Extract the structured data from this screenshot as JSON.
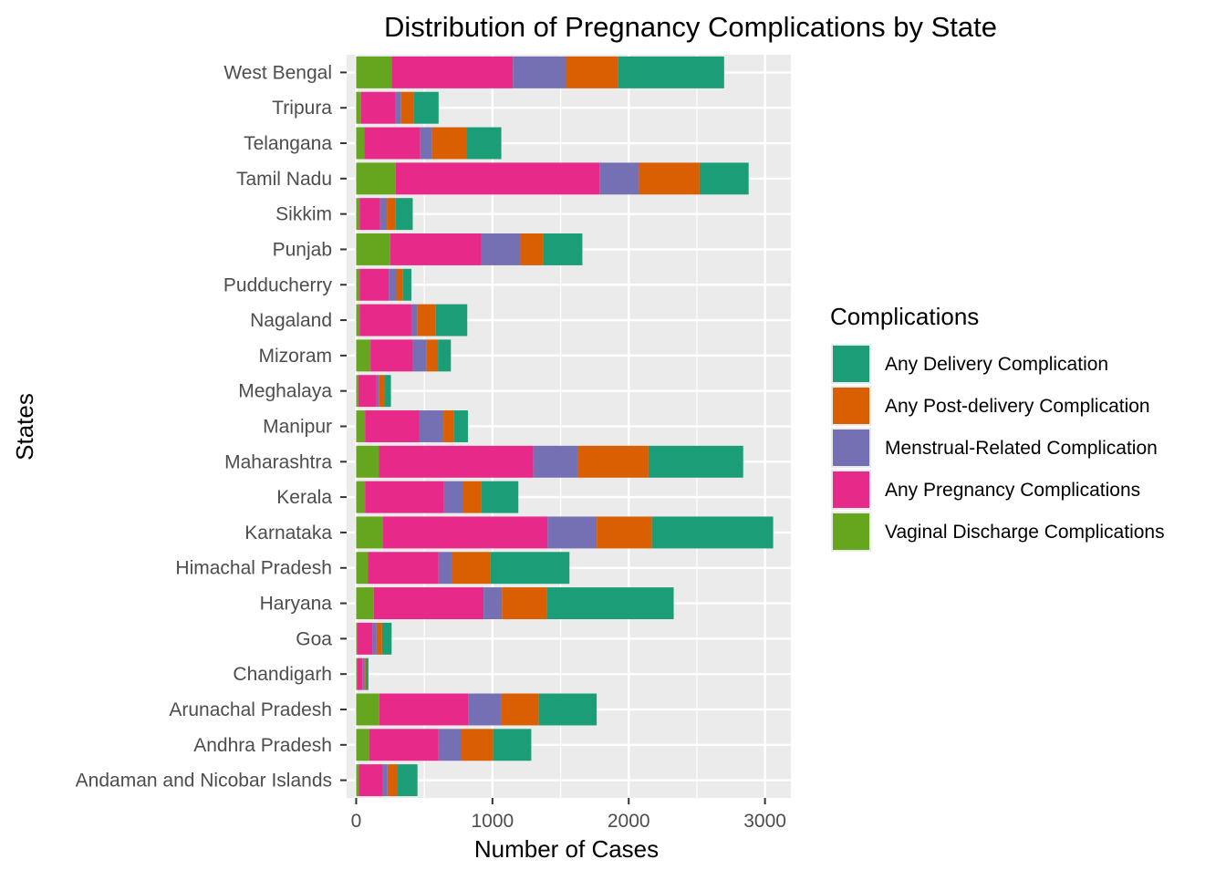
{
  "chart_data": {
    "type": "bar",
    "orientation": "horizontal",
    "stacked": true,
    "title": "Distribution of Pregnancy Complications by State",
    "xlabel": "Number of Cases",
    "ylabel": "States",
    "xlim": [
      -70,
      3190
    ],
    "xticks": [
      0,
      1000,
      2000,
      3000
    ],
    "grid": true,
    "legend_title": "Complications",
    "legend_position": "right",
    "categories": [
      "West Bengal",
      "Tripura",
      "Telangana",
      "Tamil Nadu",
      "Sikkim",
      "Punjab",
      "Pudducherry",
      "Nagaland",
      "Mizoram",
      "Meghalaya",
      "Manipur",
      "Maharashtra",
      "Kerala",
      "Karnataka",
      "Himachal Pradesh",
      "Haryana",
      "Goa",
      "Chandigarh",
      "Arunachal Pradesh",
      "Andhra Pradesh",
      "Andaman and Nicobar Islands"
    ],
    "series": [
      {
        "name": "Vaginal Discharge Complications",
        "color": "#66A61E",
        "values": [
          260,
          35,
          60,
          290,
          25,
          250,
          25,
          25,
          105,
          15,
          65,
          165,
          65,
          195,
          85,
          130,
          5,
          5,
          170,
          95,
          20
        ]
      },
      {
        "name": "Any Pregnancy Complications",
        "color": "#E7298A",
        "values": [
          890,
          250,
          410,
          1495,
          150,
          670,
          215,
          380,
          310,
          135,
          400,
          1135,
          580,
          1210,
          520,
          805,
          115,
          40,
          655,
          510,
          175
        ]
      },
      {
        "name": "Menstrual-Related Complication",
        "color": "#7570B3",
        "values": [
          390,
          45,
          85,
          290,
          50,
          285,
          55,
          45,
          100,
          20,
          175,
          330,
          135,
          360,
          95,
          135,
          30,
          15,
          240,
          165,
          35
        ]
      },
      {
        "name": "Any Post-delivery Complication",
        "color": "#D95F02",
        "values": [
          380,
          90,
          255,
          445,
          65,
          165,
          45,
          135,
          85,
          35,
          75,
          515,
          135,
          405,
          285,
          330,
          40,
          10,
          275,
          235,
          75
        ]
      },
      {
        "name": "Any Delivery Complication",
        "color": "#1B9E77",
        "values": [
          780,
          185,
          255,
          360,
          125,
          290,
          65,
          230,
          95,
          50,
          105,
          695,
          275,
          890,
          580,
          930,
          70,
          20,
          425,
          280,
          145
        ]
      }
    ],
    "legend_order": [
      "Any Delivery Complication",
      "Any Post-delivery Complication",
      "Menstrual-Related Complication",
      "Any Pregnancy Complications",
      "Vaginal Discharge Complications"
    ]
  }
}
